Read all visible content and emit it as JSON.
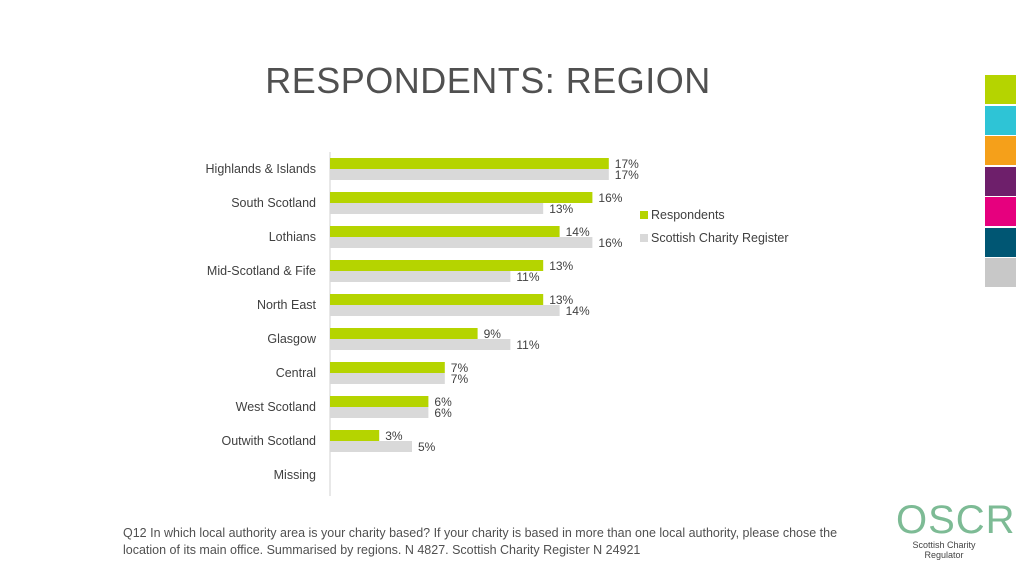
{
  "title": "RESPONDENTS: REGION",
  "chart_data": {
    "type": "bar",
    "orientation": "horizontal",
    "categories": [
      "Highlands & Islands",
      "South Scotland",
      "Lothians",
      "Mid-Scotland & Fife",
      "North East",
      "Glasgow",
      "Central",
      "West Scotland",
      "Outwith Scotland",
      "Missing"
    ],
    "series": [
      {
        "name": "Respondents",
        "color": "#b5d400",
        "values": [
          17,
          16,
          14,
          13,
          13,
          9,
          7,
          6,
          3,
          null
        ],
        "labels": [
          "17%",
          "16%",
          "14%",
          "13%",
          "13%",
          "9%",
          "7%",
          "6%",
          "3%",
          ""
        ]
      },
      {
        "name": "Scottish Charity Register",
        "color": "#d9d9d9",
        "values": [
          17,
          13,
          16,
          11,
          14,
          11,
          7,
          6,
          5,
          null
        ],
        "labels": [
          "17%",
          "13%",
          "16%",
          "11%",
          "14%",
          "11%",
          "7%",
          "6%",
          "5%",
          ""
        ]
      }
    ],
    "unit": "%",
    "legend_position": "right"
  },
  "footnote": "Q12 In which local authority area is your charity based? If your charity is based in more than one local authority, please chose the location of its main office. Summarised by regions. N 4827. Scottish Charity Register N 24921",
  "logo": {
    "name": "OSCR",
    "subtitle": "Scottish Charity Regulator",
    "color": "#7dbb95"
  },
  "side_swatches": [
    "#b5d400",
    "#2ec4d6",
    "#f5a01a",
    "#6e1f6b",
    "#e6007e",
    "#005673",
    "#c8c8c8"
  ]
}
